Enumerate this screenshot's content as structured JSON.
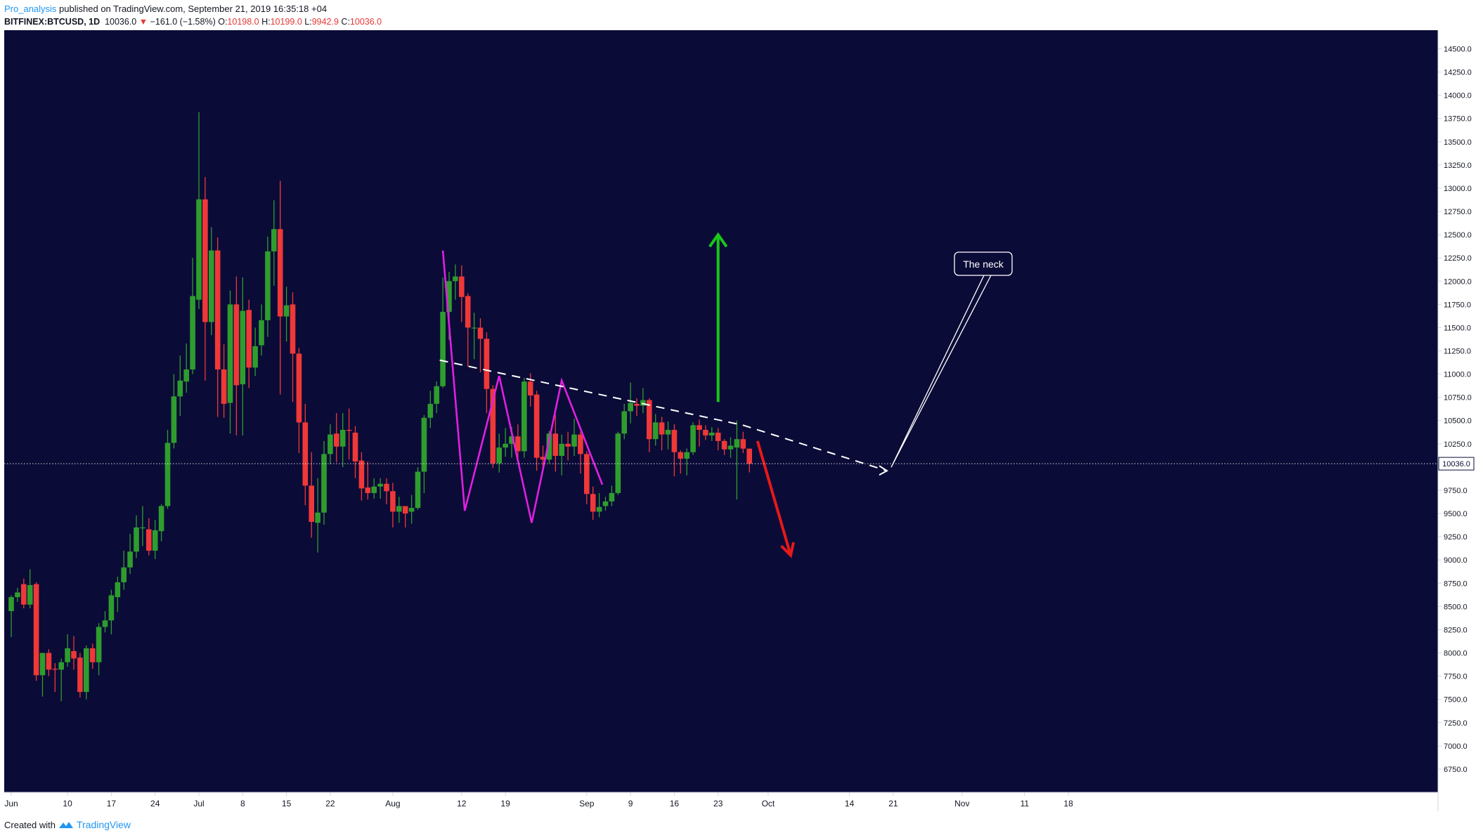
{
  "header": {
    "author": "Pro_analysis",
    "published": " published on TradingView.com, September 21, 2019 16:35:18 +04",
    "symbol": "BITFINEX:BTCUSD, 1D",
    "last": "10036.0",
    "change": "−161.0 (−1.58%)",
    "o_label": "O:",
    "o_val": "10198.0",
    "h_label": "H:",
    "h_val": "10199.0",
    "l_label": "L:",
    "l_val": "9942.9",
    "c_label": "C:",
    "c_val": "10036.0"
  },
  "footer": {
    "created_with": "Created with",
    "brand": "TradingView"
  },
  "colors": {
    "background": "#0b0b37",
    "bull": "#2e9d2e",
    "bear": "#ef3838",
    "pattern": "#e020e0",
    "neck": "#ffffff",
    "up_arrow": "#19c819",
    "down_arrow": "#e61919",
    "axis_text": "#131722",
    "axis_line": "#d1d4dc"
  },
  "chart_data": {
    "type": "candlestick",
    "symbol": "BITFINEX:BTCUSD",
    "timeframe": "1D",
    "y_range": [
      6500,
      14700
    ],
    "y_ticks": [
      "6750.0",
      "7000.0",
      "7250.0",
      "7500.0",
      "7750.0",
      "8000.0",
      "8250.0",
      "8500.0",
      "8750.0",
      "9000.0",
      "9250.0",
      "9500.0",
      "9750.0",
      "10000.0",
      "10250.0",
      "10500.0",
      "10750.0",
      "11000.0",
      "11250.0",
      "11500.0",
      "11750.0",
      "12000.0",
      "12250.0",
      "12500.0",
      "12750.0",
      "13000.0",
      "13250.0",
      "13500.0",
      "13750.0",
      "14000.0",
      "14250.0",
      "14500.0"
    ],
    "x_labels": [
      {
        "day": 0,
        "label": "Jun"
      },
      {
        "day": 9,
        "label": "10"
      },
      {
        "day": 16,
        "label": "17"
      },
      {
        "day": 23,
        "label": "24"
      },
      {
        "day": 30,
        "label": "Jul"
      },
      {
        "day": 37,
        "label": "8"
      },
      {
        "day": 44,
        "label": "15"
      },
      {
        "day": 51,
        "label": "22"
      },
      {
        "day": 61,
        "label": "Aug"
      },
      {
        "day": 72,
        "label": "12"
      },
      {
        "day": 79,
        "label": "19"
      },
      {
        "day": 92,
        "label": "Sep"
      },
      {
        "day": 99,
        "label": "9"
      },
      {
        "day": 106,
        "label": "16"
      },
      {
        "day": 113,
        "label": "23"
      },
      {
        "day": 121,
        "label": "Oct"
      },
      {
        "day": 134,
        "label": "14"
      },
      {
        "day": 141,
        "label": "21"
      },
      {
        "day": 152,
        "label": "Nov"
      },
      {
        "day": 162,
        "label": "11"
      },
      {
        "day": 169,
        "label": "18"
      }
    ],
    "candles": [
      [
        8450,
        8600,
        8170,
        8620
      ],
      [
        8600,
        8650,
        8550,
        8700
      ],
      [
        8740,
        8520,
        8480,
        8800
      ],
      [
        8520,
        8730,
        8480,
        8900
      ],
      [
        8740,
        7760,
        7700,
        8760
      ],
      [
        7760,
        8000,
        7530,
        8000
      ],
      [
        8000,
        7820,
        7750,
        8040
      ],
      [
        7830,
        7820,
        7580,
        7890
      ],
      [
        7820,
        7900,
        7480,
        7940
      ],
      [
        7900,
        8050,
        7850,
        8200
      ],
      [
        8020,
        7940,
        7820,
        8180
      ],
      [
        7950,
        7580,
        7520,
        8000
      ],
      [
        7580,
        8050,
        7500,
        8080
      ],
      [
        8050,
        7900,
        7830,
        8100
      ],
      [
        7900,
        8280,
        7760,
        8320
      ],
      [
        8280,
        8350,
        8220,
        8450
      ],
      [
        8350,
        8620,
        8200,
        8680
      ],
      [
        8600,
        8760,
        8440,
        8820
      ],
      [
        8760,
        8920,
        8680,
        9100
      ],
      [
        8920,
        9090,
        8850,
        9280
      ],
      [
        9090,
        9350,
        9020,
        9480
      ],
      [
        9350,
        9350,
        9150,
        9580
      ],
      [
        9330,
        9100,
        9050,
        9450
      ],
      [
        9100,
        9320,
        9010,
        9430
      ],
      [
        9310,
        9580,
        9200,
        9600
      ],
      [
        9580,
        10260,
        9550,
        10400
      ],
      [
        10260,
        10760,
        10200,
        11000
      ],
      [
        10760,
        10930,
        10550,
        11200
      ],
      [
        10920,
        11050,
        10800,
        11330
      ],
      [
        11050,
        11840,
        11000,
        12250
      ],
      [
        11800,
        12880,
        11700,
        13820
      ],
      [
        12880,
        11560,
        10930,
        13120
      ],
      [
        11560,
        12330,
        11420,
        12580
      ],
      [
        12330,
        11050,
        10540,
        12470
      ],
      [
        11050,
        10680,
        10530,
        11320
      ],
      [
        10690,
        11750,
        10360,
        11900
      ],
      [
        11750,
        10880,
        10340,
        12050
      ],
      [
        10890,
        11680,
        10340,
        12040
      ],
      [
        11690,
        11070,
        10850,
        11800
      ],
      [
        11070,
        11300,
        10980,
        11500
      ],
      [
        11310,
        11580,
        11200,
        11750
      ],
      [
        11580,
        12320,
        11400,
        12480
      ],
      [
        12320,
        12560,
        11950,
        12870
      ],
      [
        12560,
        11620,
        10780,
        13080
      ],
      [
        11620,
        11740,
        11350,
        11940
      ],
      [
        11750,
        11220,
        10700,
        11880
      ],
      [
        11220,
        10480,
        10150,
        11280
      ],
      [
        10480,
        9800,
        9590,
        10680
      ],
      [
        9800,
        9410,
        9240,
        10160
      ],
      [
        9400,
        9510,
        9080,
        9880
      ],
      [
        9510,
        10140,
        9380,
        10280
      ],
      [
        10140,
        10350,
        10030,
        10460
      ],
      [
        10360,
        10220,
        10050,
        10580
      ],
      [
        10220,
        10400,
        10000,
        10580
      ],
      [
        10400,
        10390,
        10080,
        10630
      ],
      [
        10370,
        10060,
        9880,
        10440
      ],
      [
        10070,
        9770,
        9640,
        10160
      ],
      [
        9780,
        9720,
        9650,
        10060
      ],
      [
        9720,
        9790,
        9660,
        9880
      ],
      [
        9790,
        9820,
        9660,
        9880
      ],
      [
        9820,
        9740,
        9600,
        9880
      ],
      [
        9740,
        9520,
        9350,
        9830
      ],
      [
        9520,
        9580,
        9400,
        9680
      ],
      [
        9580,
        9500,
        9350,
        9580
      ],
      [
        9520,
        9560,
        9390,
        9700
      ],
      [
        9560,
        9950,
        9540,
        10000
      ],
      [
        9950,
        10530,
        9720,
        10560
      ],
      [
        10530,
        10680,
        10420,
        10820
      ],
      [
        10680,
        10870,
        10580,
        10920
      ],
      [
        10870,
        11670,
        10850,
        12040
      ],
      [
        11670,
        12000,
        11370,
        12100
      ],
      [
        12000,
        12050,
        11800,
        12180
      ],
      [
        12050,
        11830,
        11560,
        12170
      ],
      [
        11840,
        11500,
        11080,
        11870
      ],
      [
        11500,
        11500,
        11160,
        11660
      ],
      [
        11500,
        11380,
        11020,
        11600
      ],
      [
        11380,
        10840,
        10580,
        11450
      ],
      [
        10840,
        10040,
        9990,
        10880
      ],
      [
        10040,
        10210,
        9940,
        10360
      ],
      [
        10210,
        10250,
        10110,
        10420
      ],
      [
        10250,
        10330,
        10100,
        10430
      ],
      [
        10330,
        10170,
        10040,
        10460
      ],
      [
        10170,
        10920,
        10100,
        10960
      ],
      [
        10920,
        10770,
        10650,
        11010
      ],
      [
        10780,
        10100,
        9960,
        10820
      ],
      [
        10110,
        10080,
        9960,
        10230
      ],
      [
        10080,
        10360,
        10040,
        10390
      ],
      [
        10360,
        10120,
        9950,
        10560
      ],
      [
        10120,
        10250,
        9910,
        10350
      ],
      [
        10250,
        10220,
        10070,
        10380
      ],
      [
        10220,
        10350,
        10120,
        10520
      ],
      [
        10350,
        10140,
        9930,
        10380
      ],
      [
        10140,
        9710,
        9600,
        10170
      ],
      [
        9710,
        9520,
        9430,
        9790
      ],
      [
        9520,
        9570,
        9460,
        9720
      ],
      [
        9580,
        9630,
        9530,
        9680
      ],
      [
        9630,
        9720,
        9580,
        9800
      ],
      [
        9720,
        10360,
        9700,
        10380
      ],
      [
        10360,
        10600,
        10300,
        10680
      ],
      [
        10600,
        10690,
        10470,
        10910
      ],
      [
        10680,
        10660,
        10550,
        10740
      ],
      [
        10660,
        10720,
        10580,
        10850
      ],
      [
        10720,
        10300,
        10160,
        10740
      ],
      [
        10300,
        10480,
        10230,
        10570
      ],
      [
        10480,
        10350,
        10180,
        10540
      ],
      [
        10350,
        10400,
        10190,
        10490
      ],
      [
        10400,
        10160,
        9900,
        10460
      ],
      [
        10160,
        10090,
        9930,
        10180
      ],
      [
        10090,
        10160,
        9910,
        10200
      ],
      [
        10160,
        10450,
        10130,
        10480
      ],
      [
        10450,
        10400,
        10220,
        10510
      ],
      [
        10400,
        10340,
        10290,
        10450
      ],
      [
        10340,
        10370,
        10280,
        10430
      ],
      [
        10370,
        10280,
        10180,
        10420
      ],
      [
        10280,
        10190,
        10130,
        10300
      ],
      [
        10190,
        10230,
        10100,
        10320
      ],
      [
        10210,
        10300,
        9650,
        10500
      ],
      [
        10300,
        10198,
        10150,
        10380
      ],
      [
        10198,
        10036,
        9942.9,
        10199
      ]
    ],
    "current_price": 10036.0,
    "current_price_label": "10036.0",
    "annotations": {
      "callout": "The neck",
      "neckline": [
        [
          68.5,
          11150
        ],
        [
          117,
          10450
        ],
        [
          140,
          9960
        ]
      ],
      "pattern": [
        [
          69,
          12330
        ],
        [
          72.5,
          9530
        ],
        [
          78,
          10980
        ],
        [
          83.2,
          9400
        ],
        [
          88,
          10930
        ],
        [
          94.5,
          9810
        ]
      ],
      "up_arrow": [
        [
          113,
          10700
        ],
        [
          113,
          12500
        ]
      ],
      "down_arrow": [
        [
          119.3,
          10280
        ],
        [
          124.6,
          9050
        ]
      ]
    }
  }
}
